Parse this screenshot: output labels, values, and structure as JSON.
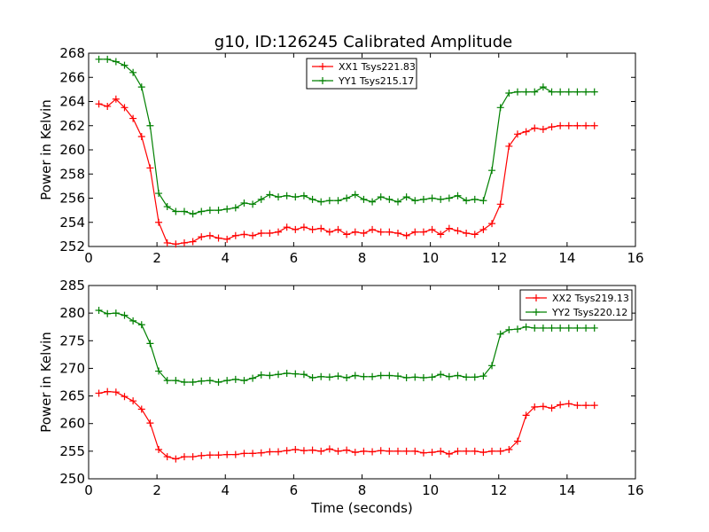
{
  "title": "g10, ID:126245 Calibrated Amplitude",
  "colors": {
    "red": "#ff0000",
    "green": "#008000"
  },
  "chart_data": [
    {
      "type": "line",
      "ylabel": "Power in Kelvin",
      "xlabel": "",
      "xlim": [
        0,
        16
      ],
      "ylim": [
        252,
        268
      ],
      "xticks": [
        0,
        2,
        4,
        6,
        8,
        10,
        12,
        14,
        16
      ],
      "yticks": [
        252,
        254,
        256,
        258,
        260,
        262,
        264,
        266,
        268
      ],
      "legend_position": "top-center",
      "x": [
        0.3,
        0.55,
        0.8,
        1.05,
        1.3,
        1.55,
        1.8,
        2.05,
        2.3,
        2.55,
        2.8,
        3.05,
        3.3,
        3.55,
        3.8,
        4.05,
        4.3,
        4.55,
        4.8,
        5.05,
        5.3,
        5.55,
        5.8,
        6.05,
        6.3,
        6.55,
        6.8,
        7.05,
        7.3,
        7.55,
        7.8,
        8.05,
        8.3,
        8.55,
        8.8,
        9.05,
        9.3,
        9.55,
        9.8,
        10.05,
        10.3,
        10.55,
        10.8,
        11.05,
        11.3,
        11.55,
        11.8,
        12.05,
        12.3,
        12.55,
        12.8,
        13.05,
        13.3,
        13.55,
        13.8,
        14.05,
        14.3,
        14.55,
        14.8
      ],
      "series": [
        {
          "name": "XX1 Tsys221.83",
          "color": "#ff0000",
          "values": [
            263.8,
            263.6,
            264.2,
            263.5,
            262.6,
            261.1,
            258.5,
            254.0,
            252.3,
            252.2,
            252.3,
            252.4,
            252.8,
            252.9,
            252.7,
            252.6,
            252.9,
            253.0,
            252.9,
            253.1,
            253.1,
            253.2,
            253.6,
            253.4,
            253.6,
            253.4,
            253.5,
            253.2,
            253.4,
            253.0,
            253.2,
            253.1,
            253.4,
            253.2,
            253.2,
            253.1,
            252.9,
            253.2,
            253.2,
            253.4,
            253.0,
            253.5,
            253.3,
            253.1,
            253.0,
            253.4,
            253.9,
            255.5,
            260.3,
            261.3,
            261.5,
            261.8,
            261.7,
            261.9,
            262.0,
            262.0,
            262.0,
            262.0,
            262.0
          ]
        },
        {
          "name": "YY1 Tsys215.17",
          "color": "#008000",
          "values": [
            267.5,
            267.5,
            267.3,
            267.0,
            266.4,
            265.2,
            262.0,
            256.4,
            255.3,
            254.9,
            254.9,
            254.7,
            254.9,
            255.0,
            255.0,
            255.1,
            255.2,
            255.6,
            255.5,
            255.9,
            256.3,
            256.1,
            256.2,
            256.1,
            256.2,
            255.9,
            255.7,
            255.8,
            255.8,
            256.0,
            256.3,
            255.9,
            255.7,
            256.1,
            255.9,
            255.7,
            256.1,
            255.8,
            255.9,
            256.0,
            255.9,
            256.0,
            256.2,
            255.8,
            255.9,
            255.8,
            258.3,
            263.5,
            264.7,
            264.8,
            264.8,
            264.8,
            265.2,
            264.8,
            264.8,
            264.8,
            264.8,
            264.8,
            264.8
          ]
        }
      ]
    },
    {
      "type": "line",
      "ylabel": "Power in Kelvin",
      "xlabel": "Time (seconds)",
      "xlim": [
        0,
        16
      ],
      "ylim": [
        250,
        285
      ],
      "xticks": [
        0,
        2,
        4,
        6,
        8,
        10,
        12,
        14,
        16
      ],
      "yticks": [
        250,
        255,
        260,
        265,
        270,
        275,
        280,
        285
      ],
      "legend_position": "top-right",
      "x": [
        0.3,
        0.55,
        0.8,
        1.05,
        1.3,
        1.55,
        1.8,
        2.05,
        2.3,
        2.55,
        2.8,
        3.05,
        3.3,
        3.55,
        3.8,
        4.05,
        4.3,
        4.55,
        4.8,
        5.05,
        5.3,
        5.55,
        5.8,
        6.05,
        6.3,
        6.55,
        6.8,
        7.05,
        7.3,
        7.55,
        7.8,
        8.05,
        8.3,
        8.55,
        8.8,
        9.05,
        9.3,
        9.55,
        9.8,
        10.05,
        10.3,
        10.55,
        10.8,
        11.05,
        11.3,
        11.55,
        11.8,
        12.05,
        12.3,
        12.55,
        12.8,
        13.05,
        13.3,
        13.55,
        13.8,
        14.05,
        14.3,
        14.55,
        14.8
      ],
      "series": [
        {
          "name": "XX2 Tsys219.13",
          "color": "#ff0000",
          "values": [
            265.5,
            265.8,
            265.7,
            264.9,
            264.1,
            262.6,
            260.1,
            255.3,
            254.0,
            253.6,
            254.0,
            254.0,
            254.2,
            254.3,
            254.3,
            254.4,
            254.4,
            254.6,
            254.6,
            254.7,
            254.9,
            254.9,
            255.1,
            255.3,
            255.1,
            255.2,
            255.0,
            255.4,
            255.0,
            255.2,
            254.8,
            255.0,
            254.9,
            255.1,
            255.0,
            255.0,
            255.0,
            255.0,
            254.7,
            254.8,
            255.0,
            254.5,
            255.0,
            255.0,
            255.0,
            254.8,
            255.0,
            255.0,
            255.3,
            256.8,
            261.5,
            263.0,
            263.1,
            262.8,
            263.4,
            263.6,
            263.3,
            263.3,
            263.3
          ]
        },
        {
          "name": "YY2 Tsys220.12",
          "color": "#008000",
          "values": [
            280.5,
            279.9,
            280.0,
            279.6,
            278.6,
            277.9,
            274.5,
            269.5,
            267.8,
            267.8,
            267.5,
            267.5,
            267.7,
            267.8,
            267.5,
            267.8,
            268.0,
            267.8,
            268.2,
            268.8,
            268.7,
            268.9,
            269.1,
            269.0,
            268.9,
            268.3,
            268.5,
            268.4,
            268.6,
            268.3,
            268.7,
            268.5,
            268.5,
            268.7,
            268.7,
            268.6,
            268.3,
            268.4,
            268.3,
            268.4,
            268.9,
            268.5,
            268.7,
            268.4,
            268.4,
            268.6,
            270.5,
            276.2,
            277.0,
            277.1,
            277.5,
            277.3,
            277.3,
            277.3,
            277.3,
            277.3,
            277.3,
            277.3,
            277.3
          ]
        }
      ]
    }
  ]
}
